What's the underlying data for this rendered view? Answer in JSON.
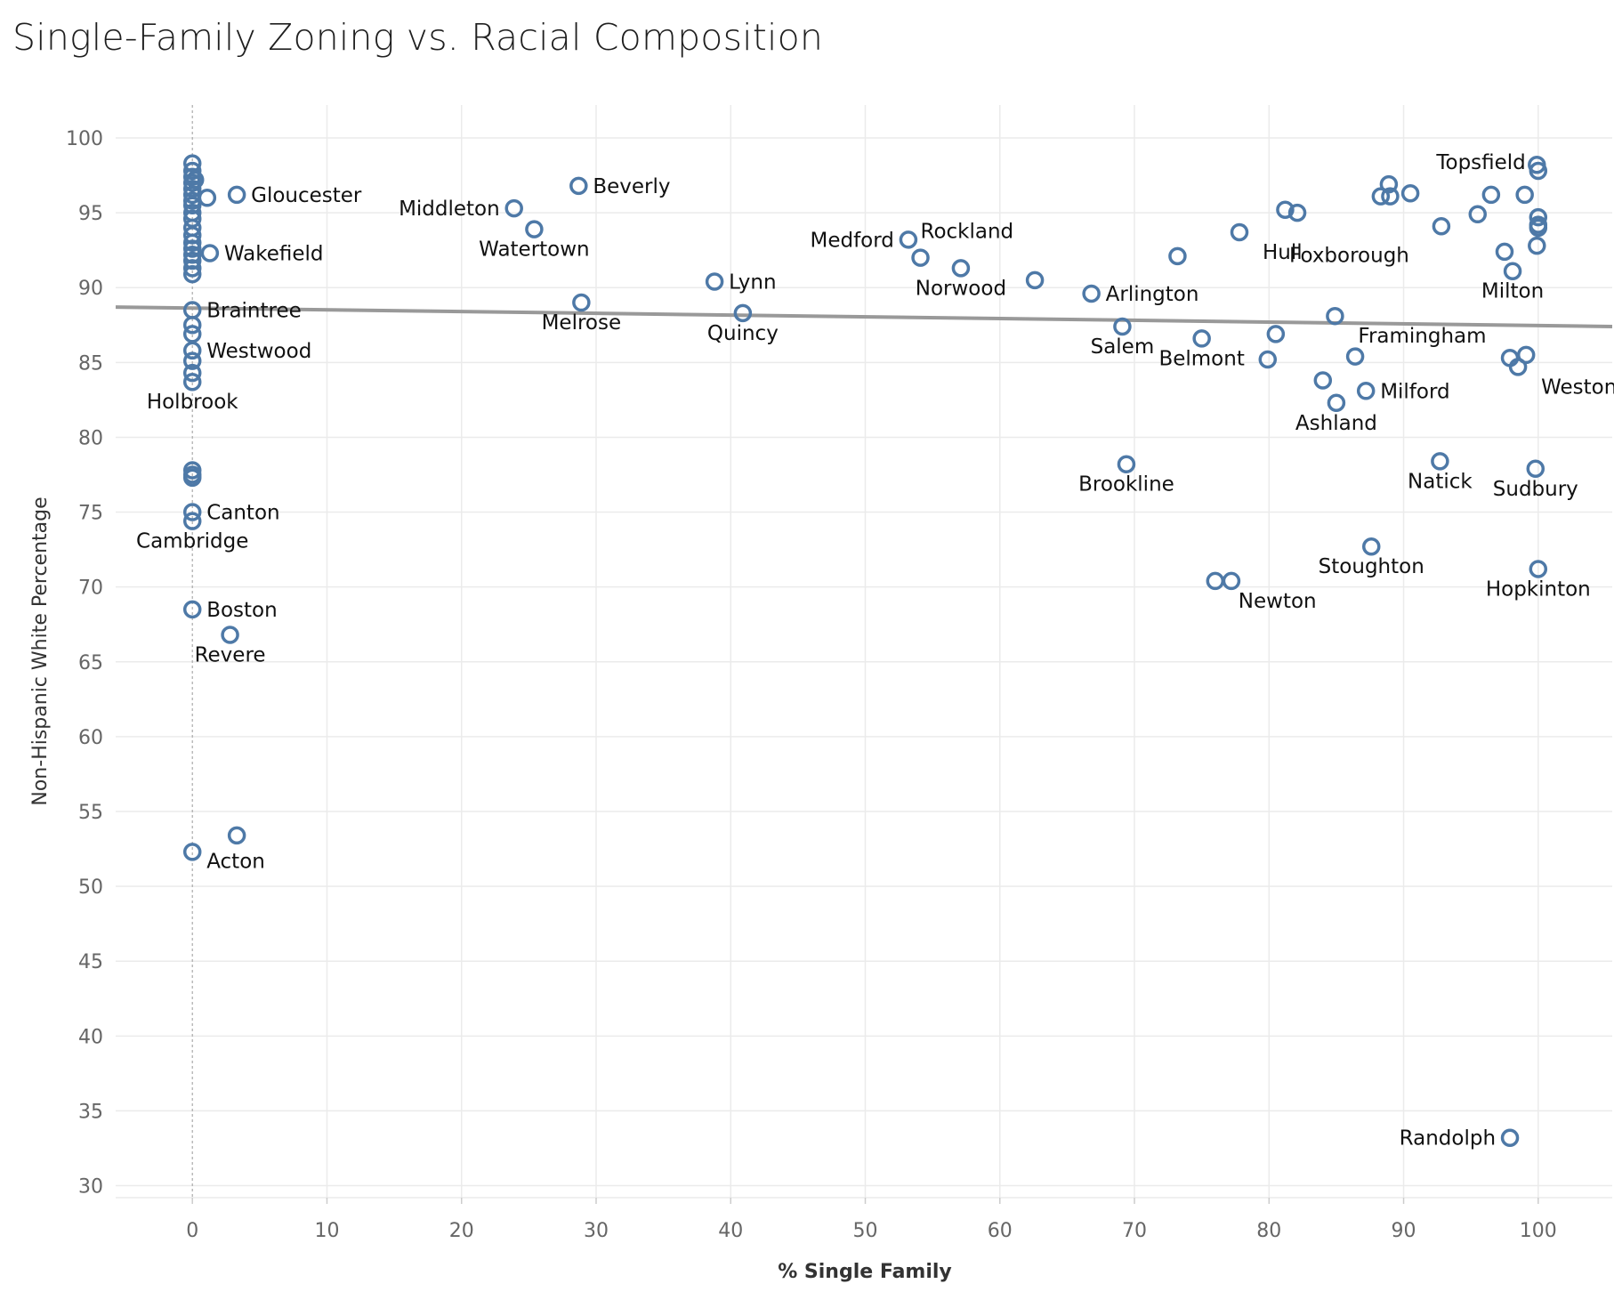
{
  "chart_data": {
    "type": "scatter",
    "title": "Single-Family Zoning vs. Racial Composition",
    "xlabel": "% Single Family",
    "ylabel": "Non-Hispanic White Percentage",
    "xlim": [
      -5.7,
      105.5
    ],
    "ylim": [
      29.2,
      102.2
    ],
    "x_ticks": [
      0,
      10,
      20,
      30,
      40,
      50,
      60,
      70,
      80,
      90,
      100
    ],
    "y_ticks": [
      30,
      35,
      40,
      45,
      50,
      55,
      60,
      65,
      70,
      75,
      80,
      85,
      90,
      95,
      100
    ],
    "grid": true,
    "marker": "hollow-circle",
    "colors": {
      "point": "#4e79a7",
      "trend": "#999999",
      "grid": "#ebebeb",
      "zero_line": "#aaaaaa"
    },
    "trend_line": {
      "x": [
        -5.7,
        105.5
      ],
      "y": [
        88.7,
        87.4
      ]
    },
    "points": [
      {
        "x": 0,
        "y": 98.3
      },
      {
        "x": 0,
        "y": 97.8
      },
      {
        "x": 0,
        "y": 97.4
      },
      {
        "x": 0,
        "y": 97.0
      },
      {
        "x": 0,
        "y": 96.6
      },
      {
        "x": 0,
        "y": 96.2
      },
      {
        "x": 0,
        "y": 95.8
      },
      {
        "x": 0,
        "y": 95.5
      },
      {
        "x": 0,
        "y": 95.0
      },
      {
        "x": 0,
        "y": 94.6
      },
      {
        "x": 0,
        "y": 94.0
      },
      {
        "x": 0,
        "y": 93.5
      },
      {
        "x": 0,
        "y": 93.0
      },
      {
        "x": 0,
        "y": 92.6
      },
      {
        "x": 0,
        "y": 92.2
      },
      {
        "x": 0,
        "y": 91.8
      },
      {
        "x": 0,
        "y": 91.3
      },
      {
        "x": 0,
        "y": 90.9
      },
      {
        "x": 0.2,
        "y": 97.2
      },
      {
        "x": 1.1,
        "y": 96.0
      },
      {
        "x": 3.3,
        "y": 96.2,
        "label": "Gloucester",
        "pos": "right"
      },
      {
        "x": 1.3,
        "y": 92.3,
        "label": "Wakefield",
        "pos": "right"
      },
      {
        "x": 0,
        "y": 88.5,
        "label": "Braintree",
        "pos": "right"
      },
      {
        "x": 0,
        "y": 87.5
      },
      {
        "x": 0,
        "y": 86.9
      },
      {
        "x": 0,
        "y": 85.8,
        "label": "Westwood",
        "pos": "right"
      },
      {
        "x": 0,
        "y": 85.1
      },
      {
        "x": 0,
        "y": 84.3
      },
      {
        "x": 0,
        "y": 83.7,
        "label": "Holbrook",
        "pos": "below"
      },
      {
        "x": 0,
        "y": 77.8
      },
      {
        "x": 0,
        "y": 77.5
      },
      {
        "x": 0,
        "y": 77.3
      },
      {
        "x": 0,
        "y": 75.0,
        "label": "Canton",
        "pos": "right"
      },
      {
        "x": 0,
        "y": 74.4,
        "label": "Cambridge",
        "pos": "below"
      },
      {
        "x": 0,
        "y": 68.5,
        "label": "Boston",
        "pos": "right"
      },
      {
        "x": 2.8,
        "y": 66.8,
        "label": "Revere",
        "pos": "below"
      },
      {
        "x": 3.3,
        "y": 53.4
      },
      {
        "x": 0,
        "y": 52.3,
        "label": "Acton",
        "pos": "right-low"
      },
      {
        "x": 23.9,
        "y": 95.3,
        "label": "Middleton",
        "pos": "left"
      },
      {
        "x": 28.7,
        "y": 96.8,
        "label": "Beverly",
        "pos": "right"
      },
      {
        "x": 25.4,
        "y": 93.9,
        "label": "Watertown",
        "pos": "below"
      },
      {
        "x": 38.8,
        "y": 90.4,
        "label": "Lynn",
        "pos": "right"
      },
      {
        "x": 28.9,
        "y": 89.0,
        "label": "Melrose",
        "pos": "below"
      },
      {
        "x": 40.9,
        "y": 88.3,
        "label": "Quincy",
        "pos": "below"
      },
      {
        "x": 53.2,
        "y": 93.2,
        "label": "Medford",
        "pos": "left"
      },
      {
        "x": 54.1,
        "y": 92.0,
        "label": "Rockland",
        "pos": "above-right"
      },
      {
        "x": 57.1,
        "y": 91.3,
        "label": "Norwood",
        "pos": "below"
      },
      {
        "x": 62.6,
        "y": 90.5
      },
      {
        "x": 66.8,
        "y": 89.6,
        "label": "Arlington",
        "pos": "right"
      },
      {
        "x": 69.1,
        "y": 87.4,
        "label": "Salem",
        "pos": "below"
      },
      {
        "x": 73.2,
        "y": 92.1
      },
      {
        "x": 75.0,
        "y": 86.6,
        "label": "Belmont",
        "pos": "below"
      },
      {
        "x": 77.8,
        "y": 93.7,
        "label": "Hull",
        "pos": "below-right"
      },
      {
        "x": 81.2,
        "y": 95.2
      },
      {
        "x": 82.1,
        "y": 95.0
      },
      {
        "x": 80.5,
        "y": 86.9
      },
      {
        "x": 79.9,
        "y": 85.2
      },
      {
        "x": 84.9,
        "y": 88.1,
        "label": "Framingham",
        "pos": "below-right"
      },
      {
        "x": 86.4,
        "y": 85.4
      },
      {
        "x": 84.0,
        "y": 83.8
      },
      {
        "x": 85.0,
        "y": 82.3,
        "label": "Ashland",
        "pos": "below"
      },
      {
        "x": 87.2,
        "y": 83.1,
        "label": "Milford",
        "pos": "right"
      },
      {
        "x": 69.4,
        "y": 78.2,
        "label": "Brookline",
        "pos": "below"
      },
      {
        "x": 87.6,
        "y": 72.7,
        "label": "Stoughton",
        "pos": "below"
      },
      {
        "x": 76.0,
        "y": 70.4,
        "label": "Newton",
        "pos": "below-right"
      },
      {
        "x": 77.2,
        "y": 70.4
      },
      {
        "x": 88.3,
        "y": 96.1
      },
      {
        "x": 88.9,
        "y": 96.9
      },
      {
        "x": 89.0,
        "y": 96.1
      },
      {
        "x": 90.5,
        "y": 96.3
      },
      {
        "x": 92.8,
        "y": 94.1,
        "label": "Foxborough",
        "pos": "below-left"
      },
      {
        "x": 95.5,
        "y": 94.9
      },
      {
        "x": 96.5,
        "y": 96.2
      },
      {
        "x": 99.0,
        "y": 96.2
      },
      {
        "x": 97.5,
        "y": 92.4
      },
      {
        "x": 98.1,
        "y": 91.1,
        "label": "Milton",
        "pos": "below"
      },
      {
        "x": 99.9,
        "y": 98.2
      },
      {
        "x": 100,
        "y": 97.8,
        "label": "Topsfield",
        "pos": "left-up"
      },
      {
        "x": 100,
        "y": 94.7
      },
      {
        "x": 100,
        "y": 94.2
      },
      {
        "x": 100,
        "y": 94.0
      },
      {
        "x": 99.9,
        "y": 92.8
      },
      {
        "x": 97.9,
        "y": 85.3
      },
      {
        "x": 99.1,
        "y": 85.5
      },
      {
        "x": 98.5,
        "y": 84.7,
        "label": "Weston",
        "pos": "below-right"
      },
      {
        "x": 92.7,
        "y": 78.4,
        "label": "Natick",
        "pos": "below"
      },
      {
        "x": 99.8,
        "y": 77.9,
        "label": "Sudbury",
        "pos": "below"
      },
      {
        "x": 100,
        "y": 71.2,
        "label": "Hopkinton",
        "pos": "below"
      },
      {
        "x": 97.9,
        "y": 33.2,
        "label": "Randolph",
        "pos": "left"
      }
    ]
  }
}
